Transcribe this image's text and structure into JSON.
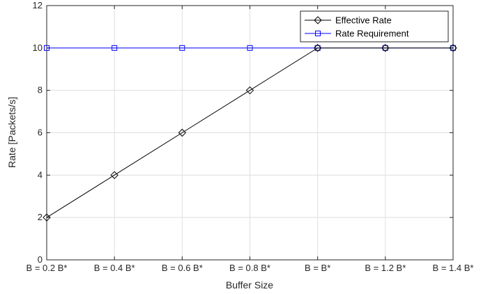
{
  "chart_data": {
    "type": "line",
    "title": "",
    "xlabel": "Buffer Size",
    "ylabel": "Rate [Packets/s]",
    "categories": [
      "B = 0.2 B*",
      "B = 0.4 B*",
      "B = 0.6 B*",
      "B = 0.8 B*",
      "B = B*",
      "B = 1.2 B*",
      "B = 1.4 B*"
    ],
    "ylim": [
      0,
      12
    ],
    "yticks": [
      0,
      2,
      4,
      6,
      8,
      10,
      12
    ],
    "grid": true,
    "legend_position": "top-right",
    "series": [
      {
        "name": "Effective Rate",
        "values": [
          2,
          4,
          6,
          8,
          10,
          10,
          10
        ],
        "color": "#000000",
        "marker": "diamond"
      },
      {
        "name": "Rate Requirement",
        "values": [
          10,
          10,
          10,
          10,
          10,
          10,
          10
        ],
        "color": "#0000ff",
        "marker": "square"
      }
    ]
  }
}
